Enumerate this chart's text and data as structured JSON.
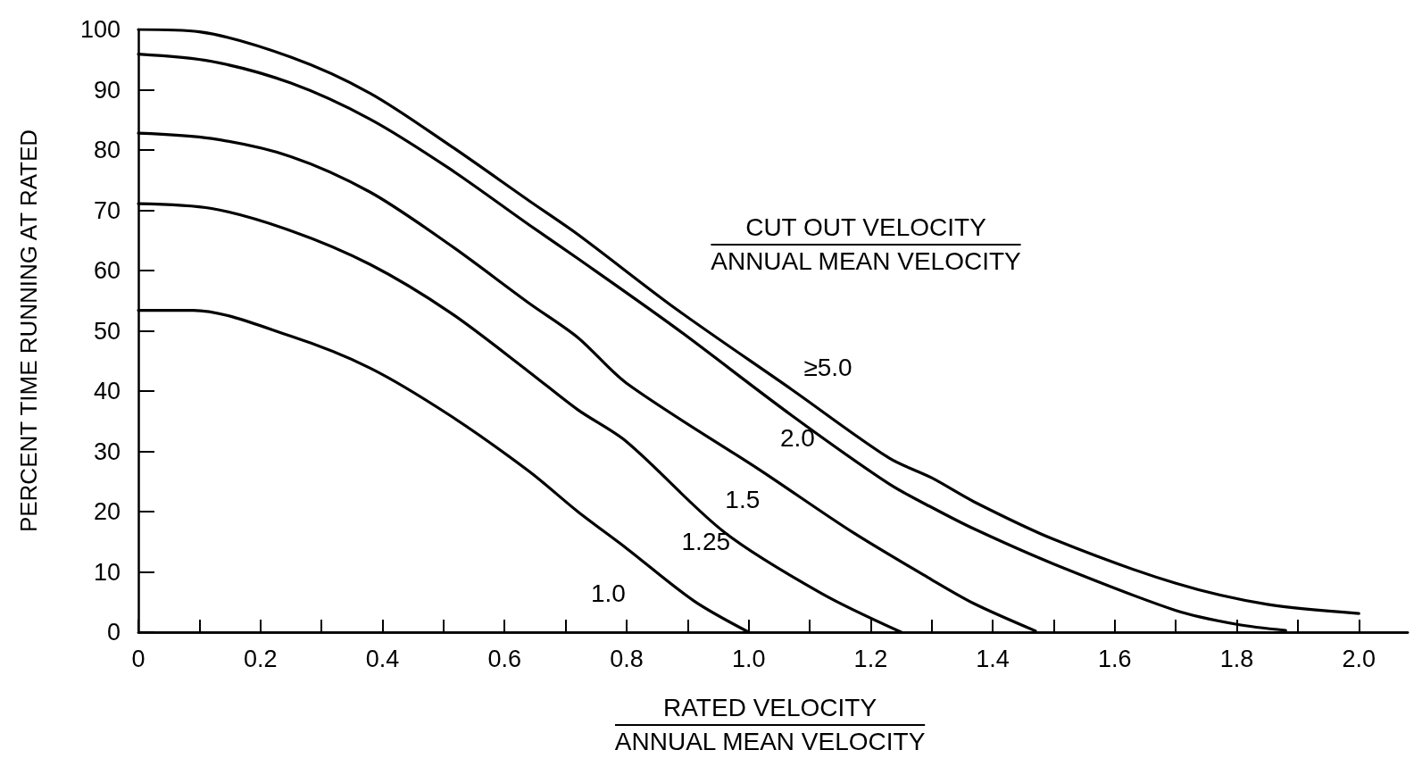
{
  "chart_data": {
    "type": "line",
    "xlabel": "RATED VELOCITY\nANNUAL MEAN VELOCITY",
    "ylabel": "PERCENT TIME RUNNING AT RATED",
    "legend_title": "CUT OUT VELOCITY\nANNUAL MEAN VELOCITY",
    "legend": false,
    "grid": false,
    "marker": "none",
    "line_style": "solid",
    "xlim": [
      0,
      2.08
    ],
    "xticks": [
      0,
      {
        "value": 0.1,
        "label": null
      },
      0.2,
      {
        "value": 0.3,
        "label": null
      },
      0.4,
      {
        "value": 0.5,
        "label": null
      },
      0.6,
      {
        "value": 0.7,
        "label": null
      },
      0.8,
      {
        "value": 0.9,
        "label": null
      },
      {
        "value": 1,
        "label": "1.0"
      },
      {
        "value": 1.1,
        "label": null
      },
      1.2,
      {
        "value": 1.3,
        "label": null
      },
      1.4,
      {
        "value": 1.5,
        "label": null
      },
      1.6,
      {
        "value": 1.7,
        "label": null
      },
      1.8,
      {
        "value": 1.9,
        "label": null
      },
      {
        "value": 2,
        "label": "2.0"
      }
    ],
    "ylim": [
      0,
      100
    ],
    "yticks": [
      0,
      10,
      20,
      30,
      40,
      50,
      60,
      70,
      80,
      90,
      100
    ],
    "series": [
      {
        "name": "≥5.0",
        "color": "#000000",
        "x": [
          0,
          0.1,
          0.25,
          0.38,
          0.51,
          0.64,
          0.72,
          0.88,
          1.07,
          1.23,
          1.3,
          1.37,
          1.5,
          1.7,
          1.85,
          2.0
        ],
        "values": [
          100,
          99.6,
          95.4,
          89.4,
          80.8,
          71.6,
          66,
          53.7,
          40.3,
          28.9,
          25.6,
          21.6,
          15.4,
          8.1,
          4.6,
          3.1
        ]
      },
      {
        "name": "2.0",
        "color": "#000000",
        "x": [
          0,
          0.12,
          0.25,
          0.38,
          0.51,
          0.64,
          0.72,
          0.88,
          1.07,
          1.23,
          1.3,
          1.37,
          1.5,
          1.7,
          1.8,
          1.88
        ],
        "values": [
          95.9,
          94.7,
          91.1,
          85.1,
          76.9,
          67.6,
          62,
          50.5,
          36,
          24.6,
          20.7,
          17.1,
          11.3,
          3.6,
          1.3,
          0.3
        ]
      },
      {
        "name": "1.5",
        "color": "#000000",
        "x": [
          0,
          0.12,
          0.25,
          0.38,
          0.51,
          0.64,
          0.72,
          0.8,
          1.02,
          1.17,
          1.3,
          1.37,
          1.47
        ],
        "values": [
          82.8,
          81.9,
          78.9,
          73,
          64.3,
          54.6,
          48.9,
          41.3,
          26.8,
          16.6,
          8.7,
          4.7,
          0.2
        ]
      },
      {
        "name": "1.25",
        "color": "#000000",
        "x": [
          0,
          0.12,
          0.25,
          0.38,
          0.51,
          0.64,
          0.72,
          0.8,
          0.96,
          1.12,
          1.25
        ],
        "values": [
          71.1,
          70.3,
          66.6,
          61,
          53.1,
          43.2,
          36.9,
          31.6,
          16.6,
          6.4,
          0
        ]
      },
      {
        "name": "1.0",
        "color": "#000000",
        "x": [
          0,
          0.09,
          0.25,
          0.38,
          0.51,
          0.64,
          0.72,
          0.8,
          0.91,
          1.0
        ],
        "values": [
          53.4,
          53.4,
          49.1,
          43.8,
          36,
          26.7,
          20,
          13.9,
          5.2,
          0
        ]
      }
    ]
  }
}
